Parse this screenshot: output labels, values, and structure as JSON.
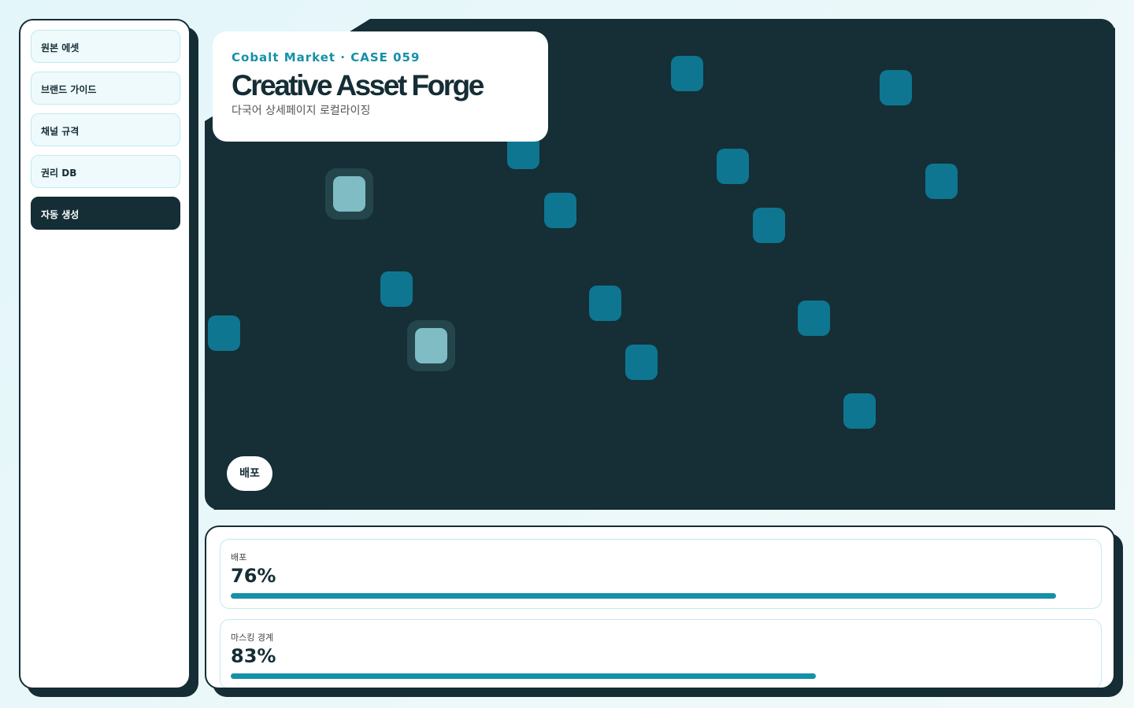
{
  "sidebar": {
    "items": [
      {
        "label": "원본 에셋",
        "active": false
      },
      {
        "label": "브랜드 가이드",
        "active": false
      },
      {
        "label": "채널 규격",
        "active": false
      },
      {
        "label": "권리 DB",
        "active": false
      },
      {
        "label": "자동 생성",
        "active": true
      }
    ]
  },
  "header": {
    "eyebrow": "Cobalt Market · CASE 059",
    "title": "Creative Asset Forge",
    "subtitle": "다국어 상세페이지 로컬라이징"
  },
  "canvas": {
    "button": "배포"
  },
  "metrics": [
    {
      "label": "배포",
      "value": "76%",
      "bar": 96
    },
    {
      "label": "마스킹 경계",
      "value": "83%",
      "bar": 68
    }
  ]
}
